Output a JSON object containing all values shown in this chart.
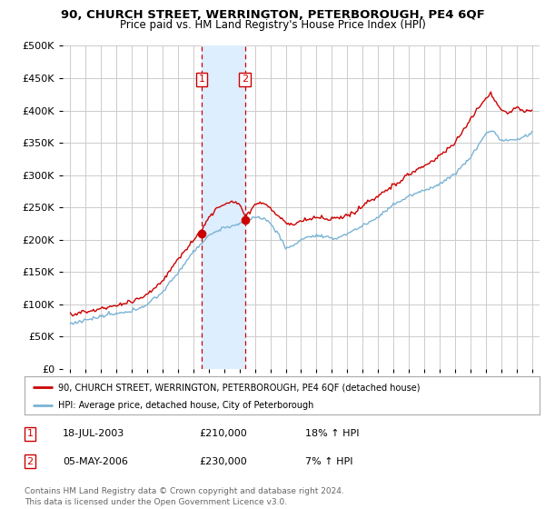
{
  "title": "90, CHURCH STREET, WERRINGTON, PETERBOROUGH, PE4 6QF",
  "subtitle": "Price paid vs. HM Land Registry's House Price Index (HPI)",
  "footer": "Contains HM Land Registry data © Crown copyright and database right 2024.\nThis data is licensed under the Open Government Licence v3.0.",
  "legend_line1": "90, CHURCH STREET, WERRINGTON, PETERBOROUGH, PE4 6QF (detached house)",
  "legend_line2": "HPI: Average price, detached house, City of Peterborough",
  "transactions": [
    {
      "num": "1",
      "date": "18-JUL-2003",
      "price": "£210,000",
      "hpi": "18% ↑ HPI"
    },
    {
      "num": "2",
      "date": "05-MAY-2006",
      "price": "£230,000",
      "hpi": "7% ↑ HPI"
    }
  ],
  "sale1_year": 2003.54,
  "sale1_price": 210000,
  "sale2_year": 2006.34,
  "sale2_price": 230000,
  "ylim": [
    0,
    500000
  ],
  "yticks": [
    0,
    50000,
    100000,
    150000,
    200000,
    250000,
    300000,
    350000,
    400000,
    450000,
    500000
  ],
  "xlim_start": 1994.5,
  "xlim_end": 2025.5,
  "red_color": "#cc0000",
  "blue_color": "#7ab3d4",
  "shade_color": "#ddeeff",
  "background_color": "#ffffff",
  "grid_color": "#cccccc"
}
